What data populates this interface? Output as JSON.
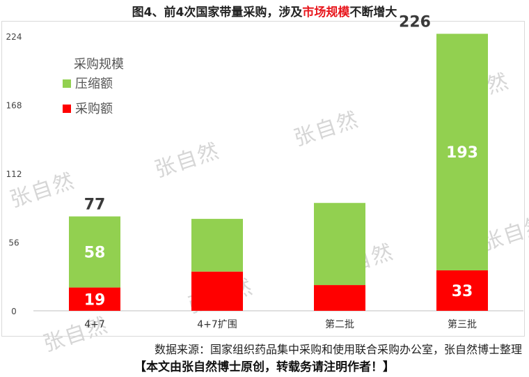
{
  "title": {
    "part1": "图4、前4次国家带量采购，涉及",
    "highlight": "市场规模",
    "part2": "不断增大",
    "highlight_color": "#e8161c"
  },
  "watermarks": [
    "张自然",
    "张自然",
    "张自然",
    "张自然",
    "张自然",
    "张自然",
    "张自然",
    "张自然"
  ],
  "source": "数据来源：国家组织药品集中采购和使用联合采购办公室，张自然博士整理",
  "notice": "【本文由张自然博士原创，转载务请注明作者！】",
  "chart_data": {
    "type": "bar",
    "stacked": true,
    "categories": [
      "4+7",
      "4+7扩围",
      "第二批",
      "第三批"
    ],
    "legend_title": "采购规模",
    "legend_position": "top-left",
    "grid": false,
    "ylim": [
      0,
      224
    ],
    "yticks": [
      0,
      56,
      112,
      168,
      224
    ],
    "series": [
      {
        "name": "采购额",
        "color": "#ff0000",
        "values": [
          19,
          32,
          21,
          33
        ],
        "labels": [
          "19",
          "",
          "",
          "33"
        ]
      },
      {
        "name": "压缩额",
        "color": "#92d050",
        "values": [
          58,
          43,
          67,
          193
        ],
        "labels": [
          "58",
          "",
          "",
          "193"
        ]
      }
    ],
    "totals": [
      77,
      75,
      88,
      226
    ],
    "total_labels": [
      "77",
      "",
      "",
      "226"
    ]
  }
}
